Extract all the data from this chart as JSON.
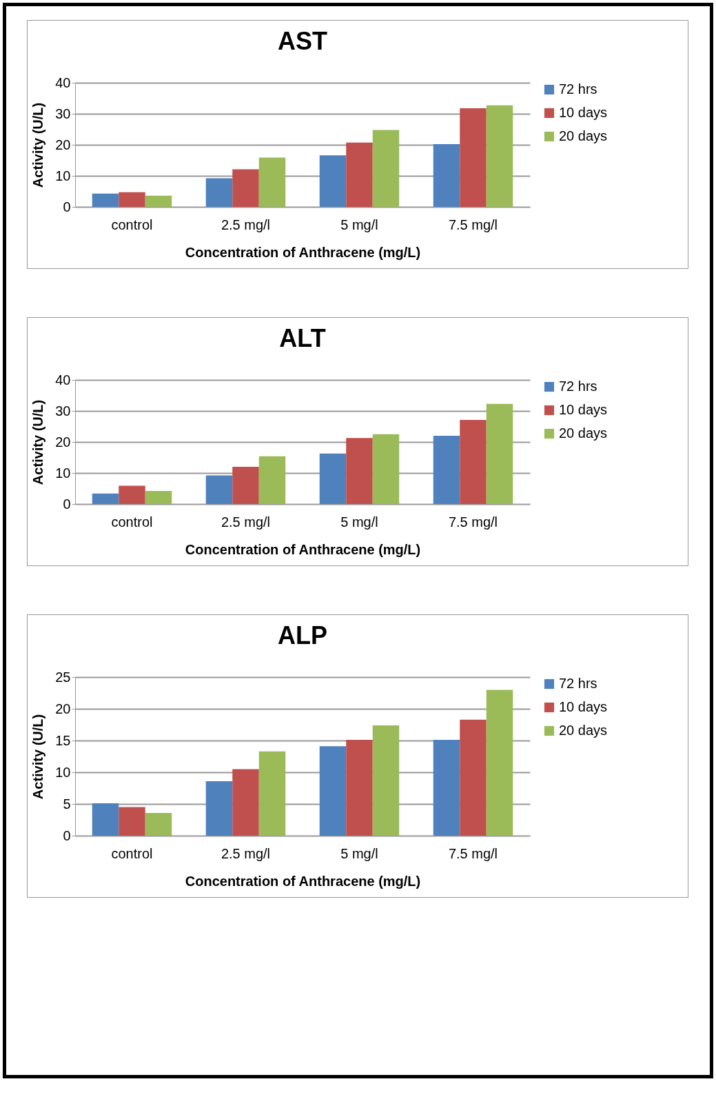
{
  "chart_data": [
    {
      "type": "bar",
      "title": "AST",
      "xlabel": "Concentration of Anthracene (mg/L)",
      "ylabel": "Activity (U/L)",
      "categories": [
        "control",
        "2.5 mg/l",
        "5 mg/l",
        "7.5 mg/l"
      ],
      "series": [
        {
          "name": "72 hrs",
          "color": "#4f81bd",
          "values": [
            4.3,
            9.2,
            16.6,
            20.2
          ]
        },
        {
          "name": "10 days",
          "color": "#c0504d",
          "values": [
            4.7,
            12.1,
            20.7,
            31.8
          ]
        },
        {
          "name": "20 days",
          "color": "#9bbb59",
          "values": [
            3.6,
            15.9,
            24.8,
            32.7
          ]
        }
      ],
      "ylim": [
        0,
        40
      ],
      "yticks": [
        0,
        10,
        20,
        30,
        40
      ],
      "grid": "y",
      "legend": "right"
    },
    {
      "type": "bar",
      "title": "ALT",
      "xlabel": "Concentration of Anthracene (mg/L)",
      "ylabel": "Activity (U/L)",
      "categories": [
        "control",
        "2.5 mg/l",
        "5 mg/l",
        "7.5 mg/l"
      ],
      "series": [
        {
          "name": "72 hrs",
          "color": "#4f81bd",
          "values": [
            3.4,
            9.2,
            16.3,
            22.0
          ]
        },
        {
          "name": "10 days",
          "color": "#c0504d",
          "values": [
            5.9,
            12.0,
            21.3,
            27.1
          ]
        },
        {
          "name": "20 days",
          "color": "#9bbb59",
          "values": [
            4.2,
            15.4,
            22.5,
            32.3
          ]
        }
      ],
      "ylim": [
        0,
        40
      ],
      "yticks": [
        0,
        10,
        20,
        30,
        40
      ],
      "grid": "y",
      "legend": "right"
    },
    {
      "type": "bar",
      "title": "ALP",
      "xlabel": "Concentration of Anthracene (mg/L)",
      "ylabel": "Activity (U/L)",
      "categories": [
        "control",
        "2.5 mg/l",
        "5 mg/l",
        "7.5 mg/l"
      ],
      "series": [
        {
          "name": "72 hrs",
          "color": "#4f81bd",
          "values": [
            5.1,
            8.6,
            14.1,
            15.1
          ]
        },
        {
          "name": "10 days",
          "color": "#c0504d",
          "values": [
            4.5,
            10.5,
            15.1,
            18.3
          ]
        },
        {
          "name": "20 days",
          "color": "#9bbb59",
          "values": [
            3.6,
            13.3,
            17.4,
            23.0
          ]
        }
      ],
      "ylim": [
        0,
        25
      ],
      "yticks": [
        0,
        5,
        10,
        15,
        20,
        25
      ],
      "grid": "y",
      "legend": "right"
    }
  ]
}
